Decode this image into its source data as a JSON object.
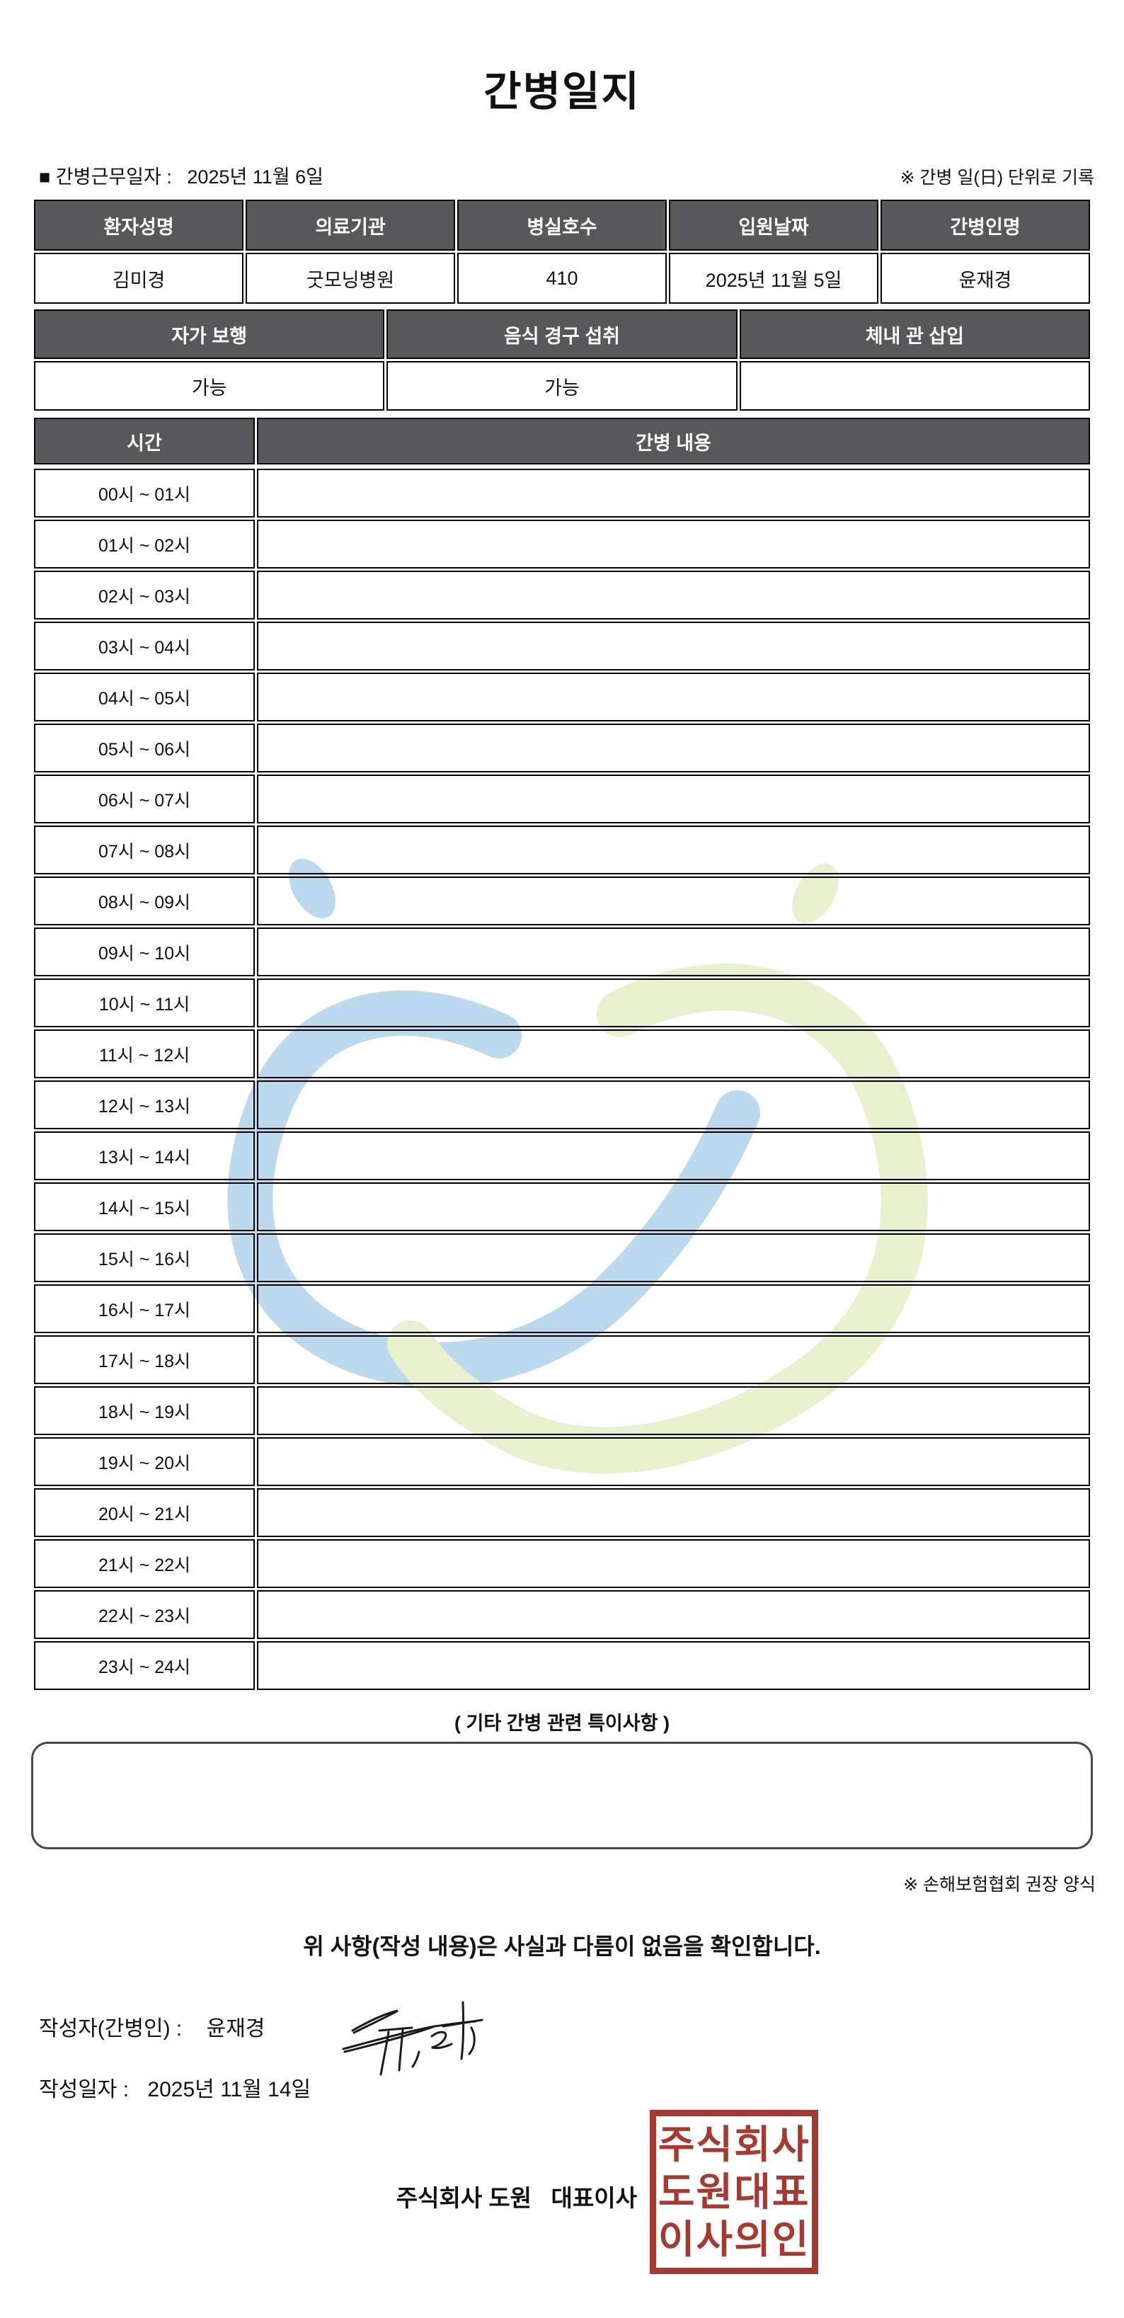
{
  "page": {
    "title": "간병일지",
    "work_date_label": "■ 간병근무일자 :",
    "work_date_value": "2025년 11월 6일",
    "unit_note": "※ 간병 일(日) 단위로 기록"
  },
  "patient_table": {
    "headers": [
      "환자성명",
      "의료기관",
      "병실호수",
      "입원날짜",
      "간병인명"
    ],
    "values": [
      "김미경",
      "굿모닝병원",
      "410",
      "2025년 11월 5일",
      "윤재경"
    ]
  },
  "condition_table": {
    "headers": [
      "자가 보행",
      "음식 경구 섭취",
      "체내 관 삽입"
    ],
    "values": [
      "가능",
      "가능",
      ""
    ]
  },
  "care_table": {
    "time_header": "시간",
    "content_header": "간병 내용",
    "rows": [
      {
        "time": "00시 ~ 01시",
        "content": ""
      },
      {
        "time": "01시 ~ 02시",
        "content": ""
      },
      {
        "time": "02시 ~ 03시",
        "content": ""
      },
      {
        "time": "03시 ~ 04시",
        "content": ""
      },
      {
        "time": "04시 ~ 05시",
        "content": ""
      },
      {
        "time": "05시 ~ 06시",
        "content": ""
      },
      {
        "time": "06시 ~ 07시",
        "content": ""
      },
      {
        "time": "07시 ~ 08시",
        "content": ""
      },
      {
        "time": "08시 ~ 09시",
        "content": ""
      },
      {
        "time": "09시 ~ 10시",
        "content": ""
      },
      {
        "time": "10시 ~ 11시",
        "content": ""
      },
      {
        "time": "11시 ~ 12시",
        "content": ""
      },
      {
        "time": "12시 ~ 13시",
        "content": ""
      },
      {
        "time": "13시 ~ 14시",
        "content": ""
      },
      {
        "time": "14시 ~ 15시",
        "content": ""
      },
      {
        "time": "15시 ~ 16시",
        "content": ""
      },
      {
        "time": "16시 ~ 17시",
        "content": ""
      },
      {
        "time": "17시 ~ 18시",
        "content": ""
      },
      {
        "time": "18시 ~ 19시",
        "content": ""
      },
      {
        "time": "19시 ~ 20시",
        "content": ""
      },
      {
        "time": "20시 ~ 21시",
        "content": ""
      },
      {
        "time": "21시 ~ 22시",
        "content": ""
      },
      {
        "time": "22시 ~ 23시",
        "content": ""
      },
      {
        "time": "23시 ~ 24시",
        "content": ""
      }
    ]
  },
  "notes": {
    "title": "( 기타 간병 관련 특이사항 )",
    "content": "",
    "form_note": "※ 손해보험협회 권장 양식"
  },
  "footer": {
    "confirmation": "위 사항(작성 내용)은 사실과 다름이 없음을 확인합니다.",
    "writer_label": "작성자(간병인) :",
    "writer_name": "윤재경",
    "date_label": "작성일자 :",
    "date_value": "2025년 11월 14일",
    "company_line": "주식회사 도원   대표이사",
    "stamp_lines": [
      "주식회사",
      "도원대표",
      "이사의인"
    ]
  },
  "colors": {
    "header_bg": "#58585a",
    "border": "#000000",
    "stamp_red": "#a43a31",
    "watermark_blue": "#bdd9ee",
    "watermark_green": "#e9f0cd"
  }
}
